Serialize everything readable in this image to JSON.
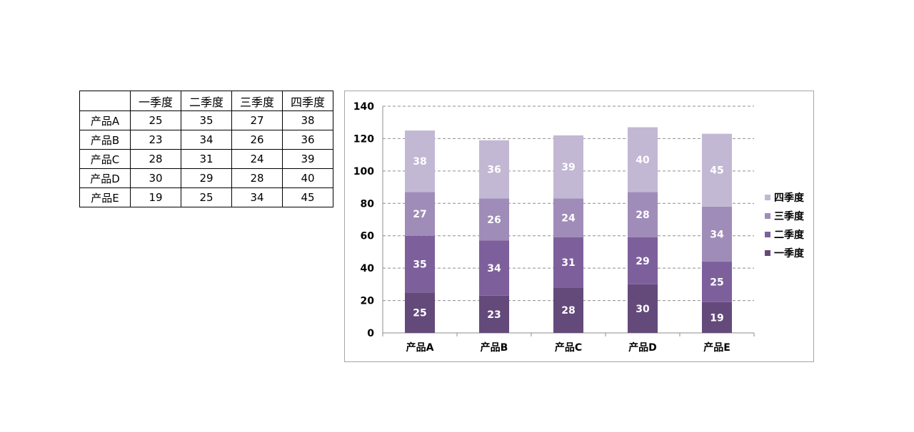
{
  "table": {
    "header": [
      "",
      "一季度",
      "二季度",
      "三季度",
      "四季度"
    ],
    "rows": [
      [
        "产品A",
        "25",
        "35",
        "27",
        "38"
      ],
      [
        "产品B",
        "23",
        "34",
        "26",
        "36"
      ],
      [
        "产品C",
        "28",
        "31",
        "24",
        "39"
      ],
      [
        "产品D",
        "30",
        "29",
        "28",
        "40"
      ],
      [
        "产品E",
        "19",
        "25",
        "34",
        "45"
      ]
    ]
  },
  "chart_data": {
    "type": "bar",
    "stacked": true,
    "categories": [
      "产品A",
      "产品B",
      "产品C",
      "产品D",
      "产品E"
    ],
    "series": [
      {
        "name": "一季度",
        "values": [
          25,
          23,
          28,
          30,
          19
        ],
        "color": "#644a7b"
      },
      {
        "name": "二季度",
        "values": [
          35,
          34,
          31,
          29,
          25
        ],
        "color": "#7d609b"
      },
      {
        "name": "三季度",
        "values": [
          27,
          26,
          24,
          28,
          34
        ],
        "color": "#a08cb8"
      },
      {
        "name": "四季度",
        "values": [
          38,
          36,
          39,
          40,
          45
        ],
        "color": "#c2b8d4"
      }
    ],
    "title": "",
    "xlabel": "",
    "ylabel": "",
    "ylim": [
      0,
      140
    ],
    "yticks": [
      0,
      20,
      40,
      60,
      80,
      100,
      120,
      140
    ],
    "grid": true,
    "grid_style": "dashed",
    "data_labels": true,
    "legend": "right",
    "legend_order": [
      "四季度",
      "三季度",
      "二季度",
      "一季度"
    ]
  }
}
